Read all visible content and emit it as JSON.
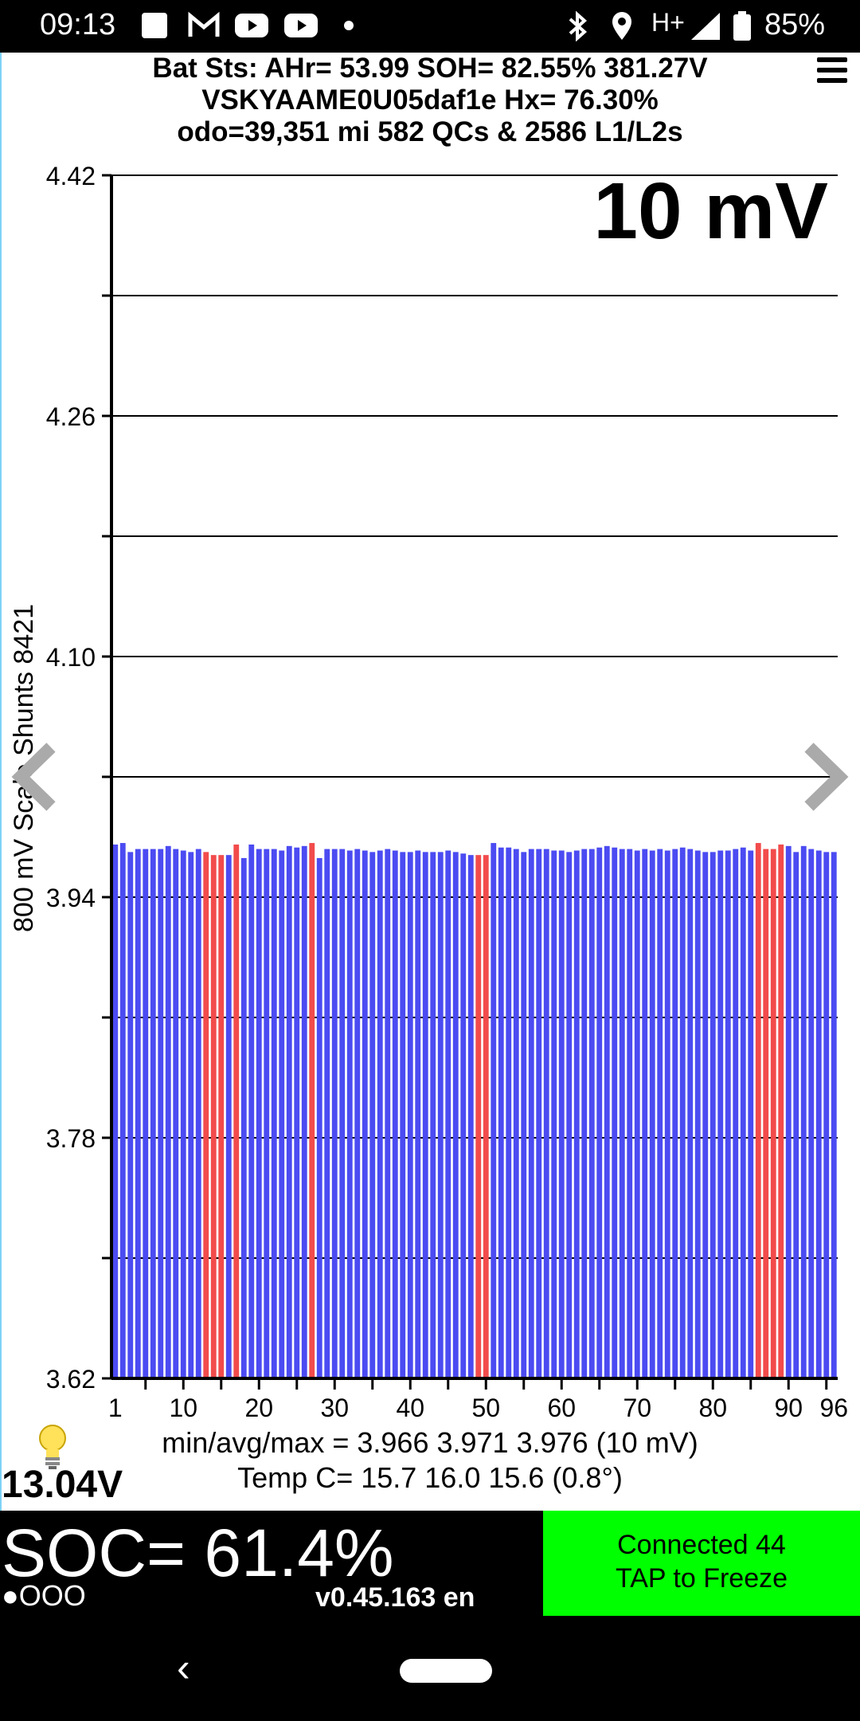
{
  "status_bar": {
    "time": "09:13",
    "battery_pct": "85%",
    "signal": "H+",
    "icons": [
      "square-icon",
      "gmail-icon",
      "youtube-icon",
      "youtube-icon",
      "dot-icon",
      "bluetooth-icon",
      "location-icon",
      "signal-icon",
      "battery-icon"
    ]
  },
  "header": {
    "line1": "Bat Sts:  AHr= 53.99  SOH= 82.55%   381.27V",
    "line2": "VSKYAAME0U05daf1e   Hx= 76.30%",
    "line3": "odo=39,351 mi 582 QCs & 2586 L1/L2s"
  },
  "scale_label": "10 mV",
  "y_axis_label": "800 mV Scale  Shunts 8421",
  "chart_data": {
    "type": "bar",
    "ylim": [
      3.62,
      4.42
    ],
    "y_ticks": [
      "4.42",
      "4.26",
      "4.10",
      "3.94",
      "3.78",
      "3.62"
    ],
    "x_ticks": [
      "1",
      "10",
      "20",
      "30",
      "40",
      "50",
      "60",
      "70",
      "80",
      "90",
      "96"
    ],
    "x": [
      1,
      2,
      3,
      4,
      5,
      6,
      7,
      8,
      9,
      10,
      11,
      12,
      13,
      14,
      15,
      16,
      17,
      18,
      19,
      20,
      21,
      22,
      23,
      24,
      25,
      26,
      27,
      28,
      29,
      30,
      31,
      32,
      33,
      34,
      35,
      36,
      37,
      38,
      39,
      40,
      41,
      42,
      43,
      44,
      45,
      46,
      47,
      48,
      49,
      50,
      51,
      52,
      53,
      54,
      55,
      56,
      57,
      58,
      59,
      60,
      61,
      62,
      63,
      64,
      65,
      66,
      67,
      68,
      69,
      70,
      71,
      72,
      73,
      74,
      75,
      76,
      77,
      78,
      79,
      80,
      81,
      82,
      83,
      84,
      85,
      86,
      87,
      88,
      89,
      90,
      91,
      92,
      93,
      94,
      95,
      96
    ],
    "values": [
      3.975,
      3.976,
      3.97,
      3.972,
      3.972,
      3.972,
      3.972,
      3.974,
      3.972,
      3.971,
      3.97,
      3.972,
      3.97,
      3.968,
      3.968,
      3.968,
      3.975,
      3.966,
      3.975,
      3.972,
      3.972,
      3.972,
      3.971,
      3.974,
      3.973,
      3.974,
      3.976,
      3.966,
      3.972,
      3.972,
      3.972,
      3.971,
      3.972,
      3.971,
      3.97,
      3.971,
      3.972,
      3.971,
      3.97,
      3.97,
      3.971,
      3.97,
      3.97,
      3.97,
      3.971,
      3.97,
      3.969,
      3.968,
      3.968,
      3.968,
      3.976,
      3.973,
      3.973,
      3.972,
      3.97,
      3.972,
      3.972,
      3.972,
      3.971,
      3.971,
      3.97,
      3.971,
      3.972,
      3.972,
      3.973,
      3.974,
      3.973,
      3.972,
      3.972,
      3.971,
      3.972,
      3.971,
      3.972,
      3.971,
      3.972,
      3.973,
      3.972,
      3.971,
      3.97,
      3.97,
      3.971,
      3.971,
      3.972,
      3.973,
      3.971,
      3.976,
      3.972,
      3.972,
      3.975,
      3.974,
      3.97,
      3.974,
      3.972,
      3.971,
      3.97,
      3.97
    ],
    "highlight_cells": [
      13,
      14,
      15,
      17,
      27,
      49,
      50,
      86,
      87,
      88,
      89
    ],
    "colors": {
      "normal": "#4b4bf2",
      "highlight": "#f24b4b"
    },
    "grid": true
  },
  "stats": {
    "line1": "min/avg/max = 3.966 3.971 3.976  (10 mV)",
    "line2": "Temp C= 15.7  16.0  15.6  (0.8°)"
  },
  "aux_voltage": "13.04V",
  "soc": "SOC= 61.4%",
  "dots": "●OOO",
  "version": "v0.45.163 en",
  "connection": {
    "line1": "Connected 44",
    "line2": "TAP to Freeze",
    "color": "#00ff00"
  },
  "nav_bar": {
    "back_glyph": "‹"
  }
}
